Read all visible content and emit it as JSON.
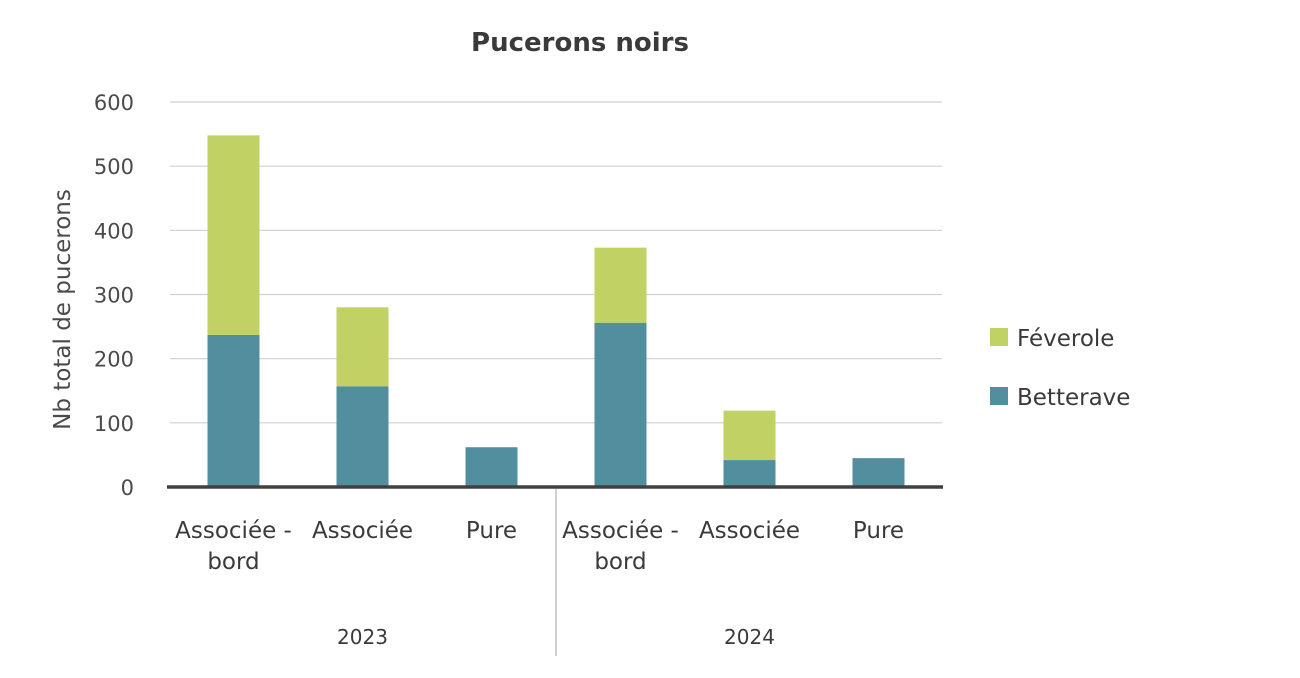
{
  "chart_data": {
    "type": "bar",
    "stacked": true,
    "title": "Pucerons noirs",
    "xlabel": "",
    "ylabel": "Nb total de pucerons",
    "ylim": [
      0,
      600
    ],
    "yticks": [
      "0",
      "100",
      "200",
      "300",
      "400",
      "500",
      "600"
    ],
    "grid": true,
    "legend_position": "right",
    "groups": [
      {
        "label": "2023",
        "categories": [
          [
            "Associée -",
            "bord"
          ],
          [
            "Associée"
          ],
          [
            "Pure"
          ]
        ]
      },
      {
        "label": "2024",
        "categories": [
          [
            "Associée -",
            "bord"
          ],
          [
            "Associée"
          ],
          [
            "Pure"
          ]
        ]
      }
    ],
    "series": [
      {
        "name": "Betterave",
        "color": "#528f9e",
        "values": [
          237,
          157,
          62,
          256,
          42,
          45
        ]
      },
      {
        "name": "Féverole",
        "color": "#c1d163",
        "values": [
          311,
          123,
          0,
          117,
          77,
          0
        ]
      }
    ],
    "legend_order": [
      "Féverole",
      "Betterave"
    ]
  }
}
